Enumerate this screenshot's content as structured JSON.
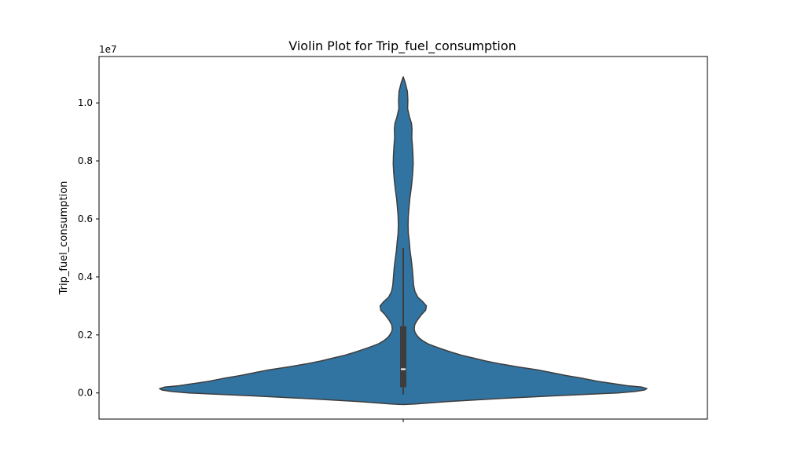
{
  "chart_data": {
    "type": "violin",
    "title": "Violin Plot for Trip_fuel_consumption",
    "xlabel": "",
    "ylabel": "Trip_fuel_consumption",
    "y_offset_label": "1e7",
    "y_scale": 10000000,
    "ylim": [
      -900000,
      11600000
    ],
    "yticks": [
      0.0,
      0.2,
      0.4,
      0.6,
      0.8,
      1.0
    ],
    "ytick_labels": [
      "0.0",
      "0.2",
      "0.4",
      "0.6",
      "0.8",
      "1.0"
    ],
    "xticks": [
      ""
    ],
    "grid": false,
    "legend": "none",
    "colors": {
      "violin_fill": "#3274a1",
      "violin_edge": "#3d3d3d",
      "box": "#3d3d3d",
      "median": "#ffffff"
    },
    "violin_profile": [
      [
        -400000,
        0.0
      ],
      [
        -380000,
        0.05
      ],
      [
        -300000,
        0.18
      ],
      [
        -200000,
        0.38
      ],
      [
        -100000,
        0.62
      ],
      [
        0,
        0.88
      ],
      [
        50000,
        0.95
      ],
      [
        100000,
        0.99
      ],
      [
        150000,
        1.0
      ],
      [
        200000,
        0.98
      ],
      [
        250000,
        0.92
      ],
      [
        300000,
        0.88
      ],
      [
        400000,
        0.8
      ],
      [
        500000,
        0.74
      ],
      [
        600000,
        0.67
      ],
      [
        700000,
        0.61
      ],
      [
        800000,
        0.55
      ],
      [
        900000,
        0.47
      ],
      [
        1000000,
        0.4
      ],
      [
        1100000,
        0.34
      ],
      [
        1200000,
        0.29
      ],
      [
        1300000,
        0.24
      ],
      [
        1400000,
        0.2
      ],
      [
        1500000,
        0.165
      ],
      [
        1600000,
        0.13
      ],
      [
        1700000,
        0.1
      ],
      [
        1800000,
        0.08
      ],
      [
        1900000,
        0.065
      ],
      [
        2000000,
        0.055
      ],
      [
        2100000,
        0.048
      ],
      [
        2200000,
        0.045
      ],
      [
        2350000,
        0.047
      ],
      [
        2500000,
        0.057
      ],
      [
        2700000,
        0.075
      ],
      [
        2850000,
        0.092
      ],
      [
        3000000,
        0.095
      ],
      [
        3150000,
        0.08
      ],
      [
        3300000,
        0.06
      ],
      [
        3500000,
        0.048
      ],
      [
        3700000,
        0.043
      ],
      [
        4000000,
        0.04
      ],
      [
        4300000,
        0.037
      ],
      [
        4600000,
        0.033
      ],
      [
        4900000,
        0.028
      ],
      [
        5200000,
        0.025
      ],
      [
        5500000,
        0.021
      ],
      [
        5800000,
        0.02
      ],
      [
        6100000,
        0.021
      ],
      [
        6400000,
        0.024
      ],
      [
        6700000,
        0.027
      ],
      [
        7000000,
        0.032
      ],
      [
        7300000,
        0.036
      ],
      [
        7600000,
        0.039
      ],
      [
        7900000,
        0.041
      ],
      [
        8200000,
        0.04
      ],
      [
        8500000,
        0.038
      ],
      [
        8800000,
        0.035
      ],
      [
        9100000,
        0.036
      ],
      [
        9300000,
        0.034
      ],
      [
        9500000,
        0.026
      ],
      [
        9800000,
        0.018
      ],
      [
        10100000,
        0.019
      ],
      [
        10400000,
        0.017
      ],
      [
        10700000,
        0.008
      ],
      [
        10900000,
        0.0
      ]
    ],
    "box": {
      "q1": 200000,
      "median": 820000,
      "q3": 2300000,
      "whisker_low": -50000,
      "whisker_high": 5000000
    }
  }
}
